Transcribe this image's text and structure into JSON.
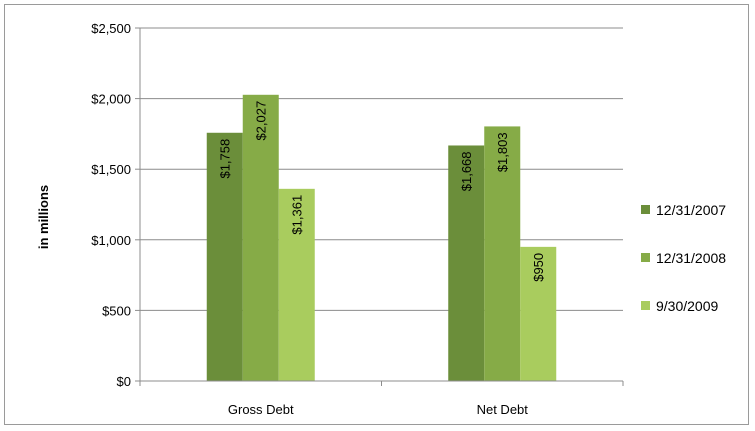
{
  "chart_data": {
    "type": "bar",
    "categories": [
      "Gross Debt",
      "Net Debt"
    ],
    "series": [
      {
        "name": "12/31/2007",
        "values": [
          1758,
          1668
        ],
        "labels": [
          "$1,758",
          "$1,668"
        ],
        "color": "#6b8e3a"
      },
      {
        "name": "12/31/2008",
        "values": [
          2027,
          1803
        ],
        "labels": [
          "$2,027",
          "$1,803"
        ],
        "color": "#86ab47"
      },
      {
        "name": "9/30/2009",
        "values": [
          1361,
          950
        ],
        "labels": [
          "$1,361",
          "$950"
        ],
        "color": "#a9cc5e"
      }
    ],
    "ylabel": "in millions",
    "ylim": [
      0,
      2500
    ],
    "yticks": [
      0,
      500,
      1000,
      1500,
      2000,
      2500
    ],
    "ytick_labels": [
      "$0",
      "$500",
      "$1,000",
      "$1,500",
      "$2,000",
      "$2,500"
    ],
    "grid": true,
    "legend": "right"
  }
}
